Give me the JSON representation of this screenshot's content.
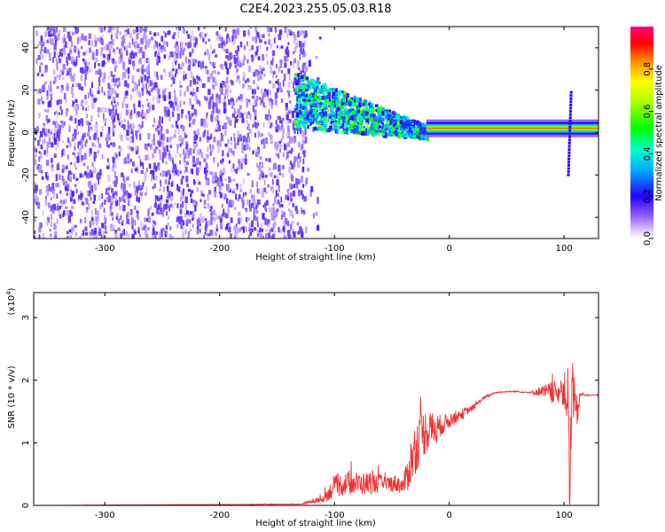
{
  "title": "C2E4.2023.255.05.03.R18",
  "chart_data": [
    {
      "type": "heatmap",
      "ylabel": "Frequency (Hz)",
      "xlabel": "Height of straight line (km)",
      "xlim": [
        -362,
        130
      ],
      "ylim": [
        -50,
        50
      ],
      "x_ticks": [
        -300,
        -200,
        -100,
        0,
        100
      ],
      "y_ticks": [
        -40,
        -20,
        0,
        20,
        40
      ],
      "colorbar": {
        "label": "Normalized spectral amplitude",
        "range": [
          0,
          1
        ],
        "ticks": [
          "0.0",
          "0.2",
          "0.4",
          "0.6",
          "0.8"
        ]
      },
      "features": [
        {
          "region": "noise",
          "x_range": [
            -362,
            -125
          ],
          "freq_range": [
            -50,
            50
          ],
          "amplitude": 0.12
        },
        {
          "region": "tracking onset",
          "x_range": [
            -135,
            -20
          ],
          "freq_center": [
            15,
            0
          ],
          "amplitude": 0.45
        },
        {
          "region": "carrier line",
          "x_range": [
            -20,
            130
          ],
          "freq_center": 2,
          "amplitude": 0.85
        },
        {
          "region": "spike",
          "x": 105,
          "freq_range": [
            -20,
            20
          ],
          "amplitude": 0.2
        }
      ]
    },
    {
      "type": "line",
      "ylabel": "SNR (10 * v/v)",
      "y_multiplier": "(x10",
      "y_multiplier_exp": "4",
      "y_multiplier_close": ")",
      "xlabel": "Height of straight line (km)",
      "xlim": [
        -362,
        130
      ],
      "ylim": [
        0,
        3.4
      ],
      "x_ticks": [
        -300,
        -200,
        -100,
        0,
        100
      ],
      "y_ticks": [
        0,
        1,
        2,
        3
      ],
      "series": [
        {
          "color": "#ee3333",
          "x": [
            -362,
            -250,
            -130,
            -110,
            -100,
            -90,
            -80,
            -70,
            -60,
            -55,
            -45,
            -40,
            -35,
            -30,
            -25,
            -20,
            -15,
            -10,
            -5,
            0,
            10,
            20,
            30,
            40,
            50,
            60,
            70,
            80,
            85,
            90,
            95,
            100,
            103,
            105,
            107,
            110,
            115,
            120,
            130
          ],
          "y": [
            0.0,
            0.01,
            0.02,
            0.1,
            0.3,
            0.35,
            0.35,
            0.35,
            0.35,
            0.35,
            0.35,
            0.3,
            0.6,
            0.9,
            1.1,
            1.2,
            1.2,
            1.25,
            1.3,
            1.35,
            1.45,
            1.55,
            1.72,
            1.8,
            1.82,
            1.82,
            1.8,
            1.82,
            1.8,
            1.8,
            1.82,
            1.82,
            1.8,
            0.2,
            1.9,
            1.4,
            1.78,
            1.76,
            1.76
          ],
          "noise_amp": [
            0.0,
            0.005,
            0.01,
            0.1,
            0.3,
            0.3,
            0.3,
            0.3,
            0.25,
            0.2,
            0.25,
            0.2,
            0.6,
            0.7,
            0.7,
            0.6,
            0.5,
            0.35,
            0.25,
            0.2,
            0.15,
            0.08,
            0.04,
            0.02,
            0.02,
            0.02,
            0.02,
            0.15,
            0.25,
            0.3,
            0.3,
            0.4,
            1.2,
            1.3,
            1.1,
            0.6,
            0.05,
            0.02,
            0.02
          ]
        }
      ]
    }
  ]
}
